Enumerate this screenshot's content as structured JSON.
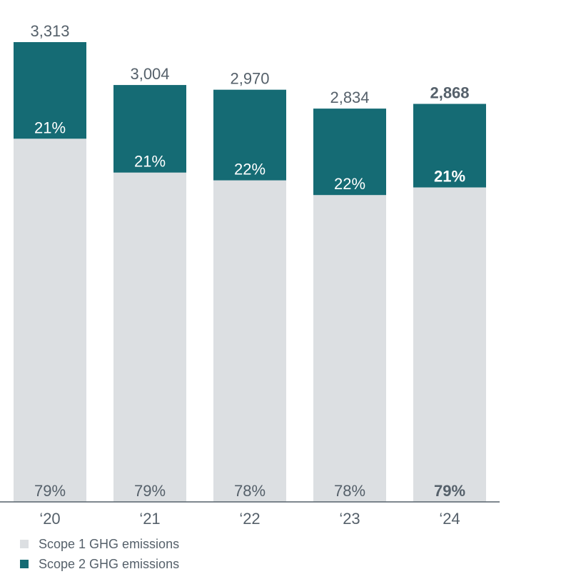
{
  "chart_data": {
    "type": "bar",
    "stacked": true,
    "categories": [
      "‘20",
      "‘21",
      "‘22",
      "‘23",
      "‘24"
    ],
    "totals": [
      "3,313",
      "3,004",
      "2,970",
      "2,834",
      "2,868"
    ],
    "total_values": [
      3313,
      3004,
      2970,
      2834,
      2868
    ],
    "series": [
      {
        "name": "Scope 1 GHG emissions",
        "color": "#dcdfe2",
        "share_labels": [
          "79%",
          "79%",
          "78%",
          "78%",
          "79%"
        ],
        "values": [
          2617,
          2373,
          2317,
          2211,
          2266
        ]
      },
      {
        "name": "Scope 2 GHG emissions",
        "color": "#156b74",
        "share_labels": [
          "21%",
          "21%",
          "22%",
          "22%",
          "21%"
        ],
        "values": [
          696,
          631,
          653,
          623,
          602
        ]
      }
    ],
    "highlighted_category": "‘24",
    "ylim": [
      0,
      3313
    ],
    "legend_position": "bottom-left",
    "grid": false
  }
}
